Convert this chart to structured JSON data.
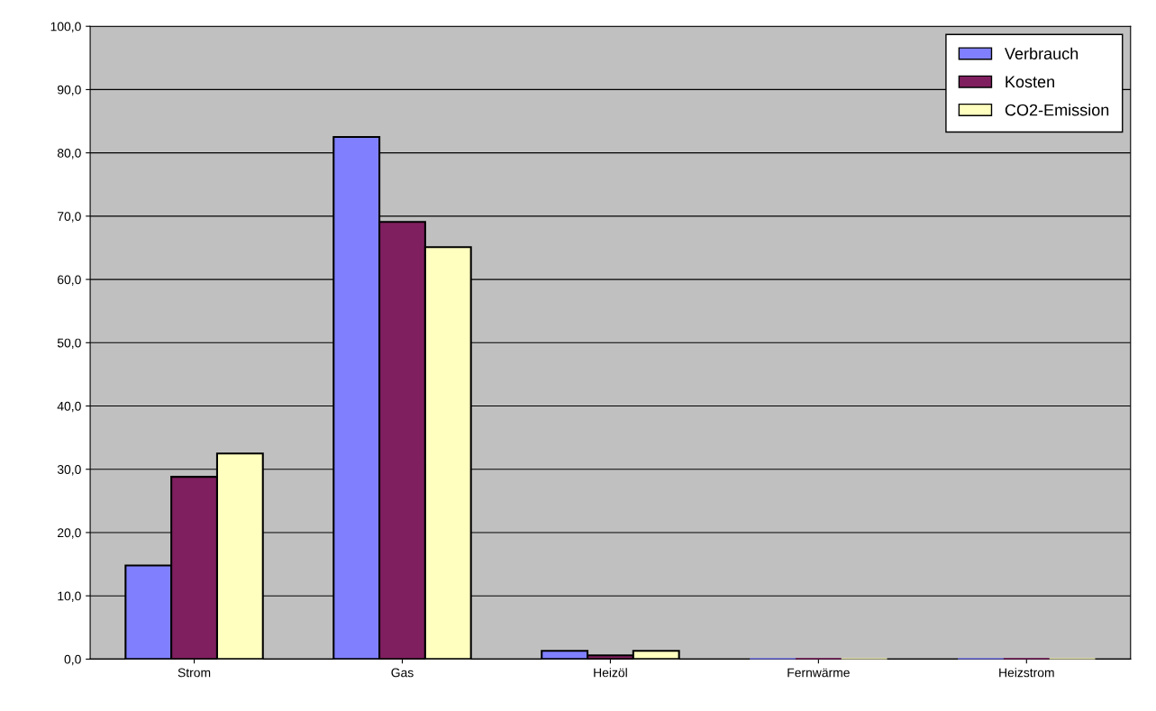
{
  "chart_data": {
    "type": "bar",
    "categories": [
      "Strom",
      "Gas",
      "Heizöl",
      "Fernwärme",
      "Heizstrom"
    ],
    "series": [
      {
        "name": "Verbrauch",
        "color": "#8080ff",
        "values": [
          14.8,
          82.5,
          1.3,
          0,
          0
        ]
      },
      {
        "name": "Kosten",
        "color": "#801f5f",
        "values": [
          28.8,
          69.1,
          0.6,
          0,
          0
        ]
      },
      {
        "name": "CO2-Emission",
        "color": "#ffffc0",
        "values": [
          32.5,
          65.1,
          1.3,
          0,
          0
        ]
      }
    ],
    "ylim": [
      0,
      100
    ],
    "yticks": [
      {
        "value": 0,
        "label": "0,0"
      },
      {
        "value": 10,
        "label": "10,0"
      },
      {
        "value": 20,
        "label": "20,0"
      },
      {
        "value": 30,
        "label": "30,0"
      },
      {
        "value": 40,
        "label": "40,0"
      },
      {
        "value": 50,
        "label": "50,0"
      },
      {
        "value": 60,
        "label": "60,0"
      },
      {
        "value": 70,
        "label": "70,0"
      },
      {
        "value": 80,
        "label": "80,0"
      },
      {
        "value": 90,
        "label": "90,0"
      },
      {
        "value": 100,
        "label": "100,0"
      }
    ],
    "grid": "y",
    "legend": "top right"
  }
}
